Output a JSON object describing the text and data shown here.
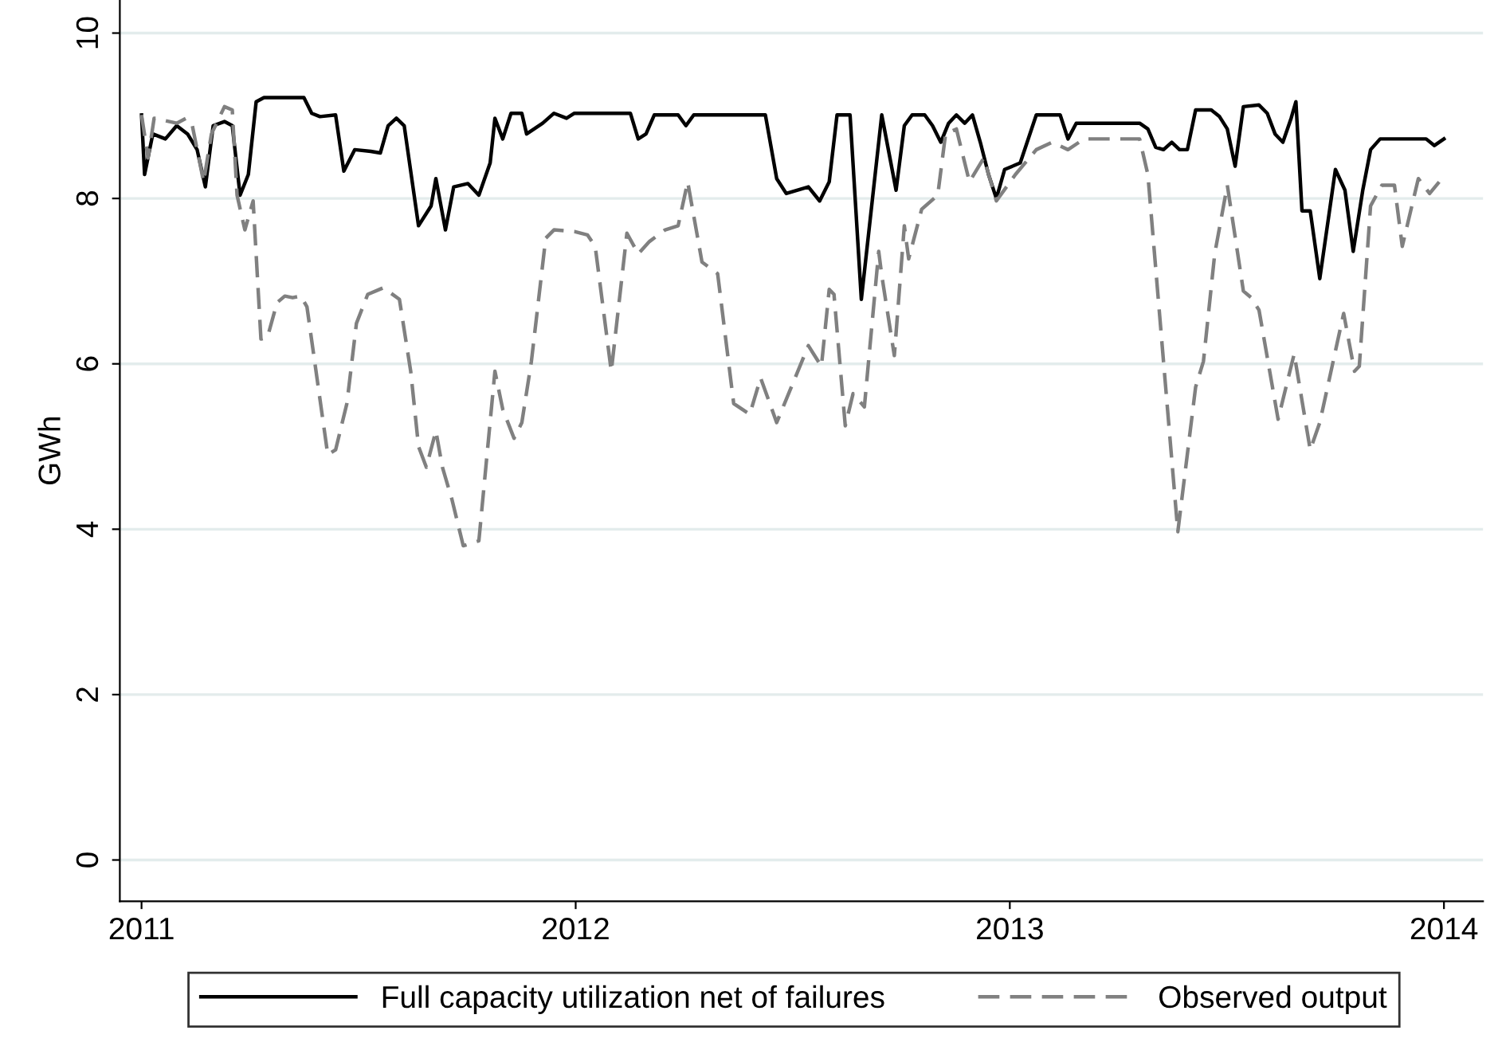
{
  "chart_data": {
    "type": "line",
    "ylabel": "GWh",
    "xlim": [
      2010.95,
      2014.09
    ],
    "ylim": [
      -0.5,
      10.4
    ],
    "xticks": [
      2011,
      2012,
      2013,
      2014
    ],
    "yticks": [
      0,
      2,
      4,
      6,
      8,
      10
    ],
    "grid": "y",
    "legend": "bottom",
    "series": [
      {
        "name": "Full capacity utilization net of failures",
        "color": "#000000",
        "line_style": "solid",
        "x": [
          2011.0,
          2011.007,
          2011.026,
          2011.055,
          2011.081,
          2011.106,
          2011.128,
          2011.147,
          2011.165,
          2011.191,
          2011.209,
          2011.227,
          2011.246,
          2011.264,
          2011.282,
          2011.374,
          2011.392,
          2011.411,
          2011.447,
          2011.466,
          2011.491,
          2011.528,
          2011.55,
          2011.568,
          2011.587,
          2011.605,
          2011.638,
          2011.667,
          2011.678,
          2011.7,
          2011.719,
          2011.752,
          2011.777,
          2011.803,
          2011.814,
          2011.832,
          2011.851,
          2011.876,
          2011.887,
          2011.924,
          2011.95,
          2011.979,
          2011.997,
          2012.034,
          2012.126,
          2012.144,
          2012.162,
          2012.181,
          2012.236,
          2012.254,
          2012.272,
          2012.309,
          2012.437,
          2012.463,
          2012.485,
          2012.536,
          2012.562,
          2012.584,
          2012.602,
          2012.632,
          2012.658,
          2012.705,
          2012.738,
          2012.757,
          2012.775,
          2012.804,
          2012.822,
          2012.841,
          2012.859,
          2012.877,
          2012.896,
          2012.914,
          2012.932,
          2012.951,
          2012.969,
          2012.988,
          2013.024,
          2013.061,
          2013.116,
          2013.134,
          2013.153,
          2013.299,
          2013.318,
          2013.336,
          2013.354,
          2013.373,
          2013.391,
          2013.409,
          2013.428,
          2013.464,
          2013.483,
          2013.501,
          2013.519,
          2013.538,
          2013.574,
          2013.593,
          2013.611,
          2013.629,
          2013.648,
          2013.659,
          2013.673,
          2013.692,
          2013.714,
          2013.75,
          2013.772,
          2013.791,
          2013.813,
          2013.831,
          2013.853,
          2013.959,
          2013.978,
          2014.0
        ],
        "values": [
          9.01,
          8.29,
          8.78,
          8.72,
          8.88,
          8.78,
          8.59,
          8.14,
          8.88,
          8.93,
          8.88,
          8.04,
          8.29,
          9.17,
          9.22,
          9.22,
          9.03,
          8.99,
          9.01,
          8.33,
          8.59,
          8.57,
          8.55,
          8.88,
          8.97,
          8.88,
          7.67,
          7.91,
          8.24,
          7.62,
          8.14,
          8.18,
          8.04,
          8.43,
          8.97,
          8.72,
          9.03,
          9.03,
          8.78,
          8.91,
          9.03,
          8.97,
          9.03,
          9.03,
          9.03,
          8.72,
          8.78,
          9.01,
          9.01,
          8.88,
          9.01,
          9.01,
          9.01,
          8.24,
          8.06,
          8.14,
          7.97,
          8.2,
          9.01,
          9.01,
          6.78,
          9.01,
          8.1,
          8.88,
          9.01,
          9.01,
          8.88,
          8.68,
          8.91,
          9.01,
          8.91,
          9.01,
          8.68,
          8.29,
          8.0,
          8.35,
          8.43,
          9.01,
          9.01,
          8.72,
          8.91,
          8.91,
          8.84,
          8.62,
          8.59,
          8.68,
          8.59,
          8.59,
          9.07,
          9.07,
          8.99,
          8.84,
          8.39,
          9.11,
          9.13,
          9.03,
          8.78,
          8.68,
          8.97,
          9.17,
          7.85,
          7.85,
          7.03,
          8.35,
          8.1,
          7.36,
          8.1,
          8.59,
          8.72,
          8.72,
          8.64,
          8.72
        ]
      },
      {
        "name": "Observed output",
        "color": "#808080",
        "line_style": "dashed",
        "x": [
          2011.0,
          2011.015,
          2011.029,
          2011.081,
          2011.103,
          2011.117,
          2011.143,
          2011.161,
          2011.191,
          2011.209,
          2011.22,
          2011.238,
          2011.257,
          2011.275,
          2011.29,
          2011.312,
          2011.33,
          2011.348,
          2011.367,
          2011.381,
          2011.429,
          2011.447,
          2011.473,
          2011.495,
          2011.521,
          2011.557,
          2011.594,
          2011.62,
          2011.638,
          2011.656,
          2011.678,
          2011.693,
          2011.715,
          2011.741,
          2011.777,
          2011.814,
          2011.832,
          2011.858,
          2011.876,
          2011.898,
          2011.931,
          2011.95,
          2011.997,
          2012.027,
          2012.045,
          2012.082,
          2012.118,
          2012.144,
          2012.17,
          2012.206,
          2012.236,
          2012.258,
          2012.291,
          2012.327,
          2012.364,
          2012.401,
          2012.426,
          2012.463,
          2012.536,
          2012.566,
          2012.584,
          2012.595,
          2012.621,
          2012.639,
          2012.665,
          2012.698,
          2012.705,
          2012.734,
          2012.757,
          2012.767,
          2012.797,
          2012.834,
          2012.852,
          2012.877,
          2012.907,
          2012.94,
          2012.969,
          2013.013,
          2013.061,
          2013.098,
          2013.134,
          2013.171,
          2013.244,
          2013.299,
          2013.318,
          2013.354,
          2013.387,
          2013.428,
          2013.446,
          2013.472,
          2013.501,
          2013.538,
          2013.556,
          2013.574,
          2013.618,
          2013.655,
          2013.692,
          2013.714,
          2013.769,
          2013.794,
          2013.805,
          2013.831,
          2013.857,
          2013.886,
          2013.904,
          2013.941,
          2013.967,
          2013.989
        ],
        "values": [
          9.01,
          8.49,
          8.97,
          8.91,
          8.97,
          8.88,
          8.2,
          8.78,
          9.11,
          9.07,
          8.04,
          7.62,
          7.97,
          6.3,
          6.32,
          6.74,
          6.82,
          6.8,
          6.82,
          6.69,
          4.9,
          4.96,
          5.52,
          6.49,
          6.84,
          6.92,
          6.78,
          5.91,
          5.0,
          4.75,
          5.19,
          4.75,
          4.36,
          3.8,
          3.86,
          5.91,
          5.45,
          5.1,
          5.29,
          6.03,
          7.52,
          7.62,
          7.6,
          7.56,
          7.42,
          5.91,
          7.58,
          7.33,
          7.48,
          7.62,
          7.67,
          8.2,
          7.23,
          7.09,
          5.52,
          5.39,
          5.83,
          5.29,
          6.22,
          5.97,
          6.9,
          6.84,
          5.25,
          5.64,
          5.48,
          7.36,
          7.07,
          6.1,
          7.67,
          7.27,
          7.87,
          8.04,
          8.78,
          8.84,
          8.2,
          8.49,
          7.97,
          8.29,
          8.59,
          8.68,
          8.59,
          8.72,
          8.72,
          8.72,
          8.29,
          6.03,
          3.97,
          5.72,
          6.03,
          7.33,
          8.16,
          6.88,
          6.8,
          6.65,
          5.33,
          6.12,
          4.96,
          5.29,
          6.61,
          5.91,
          5.97,
          7.91,
          8.16,
          8.16,
          7.42,
          8.24,
          8.06,
          8.2
        ]
      }
    ]
  }
}
